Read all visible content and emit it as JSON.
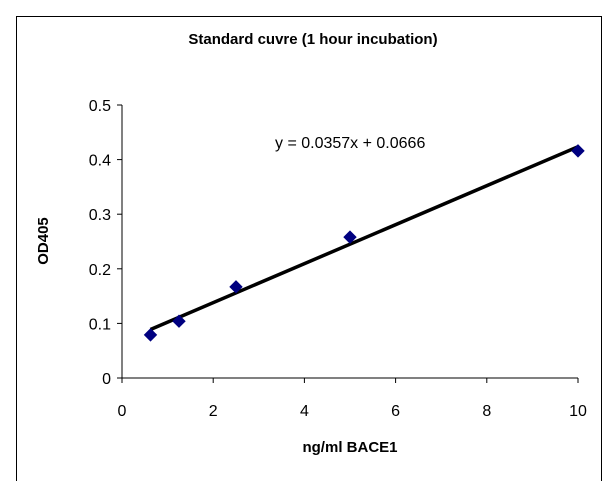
{
  "chart_data": {
    "type": "scatter",
    "title": "Standard cuvre (1 hour incubation)",
    "xlabel": "ng/ml BACE1",
    "ylabel": "OD405",
    "xlim": [
      0,
      10
    ],
    "ylim": [
      0,
      0.5
    ],
    "xticks": [
      0,
      2,
      4,
      6,
      8,
      10
    ],
    "yticks": [
      0,
      0.1,
      0.2,
      0.3,
      0.4,
      0.5
    ],
    "xtick_labels": [
      "0",
      "2",
      "4",
      "6",
      "8",
      "10"
    ],
    "ytick_labels": [
      "0",
      "0.1",
      "0.2",
      "0.3",
      "0.4",
      "0.5"
    ],
    "series": [
      {
        "x": [
          0.625,
          1.25,
          2.5,
          5,
          10
        ],
        "y": [
          0.079,
          0.104,
          0.167,
          0.258,
          0.416
        ]
      }
    ],
    "trendline": {
      "type": "linear",
      "slope": 0.0357,
      "intercept": 0.0666,
      "x_range": [
        0.625,
        10
      ],
      "equation": "y = 0.0357x + 0.0666"
    },
    "grid": false,
    "legend": "none",
    "colors": {
      "marker": "#000080",
      "trendline": "#000000",
      "axis": "#000000",
      "frame": "#000000"
    }
  }
}
